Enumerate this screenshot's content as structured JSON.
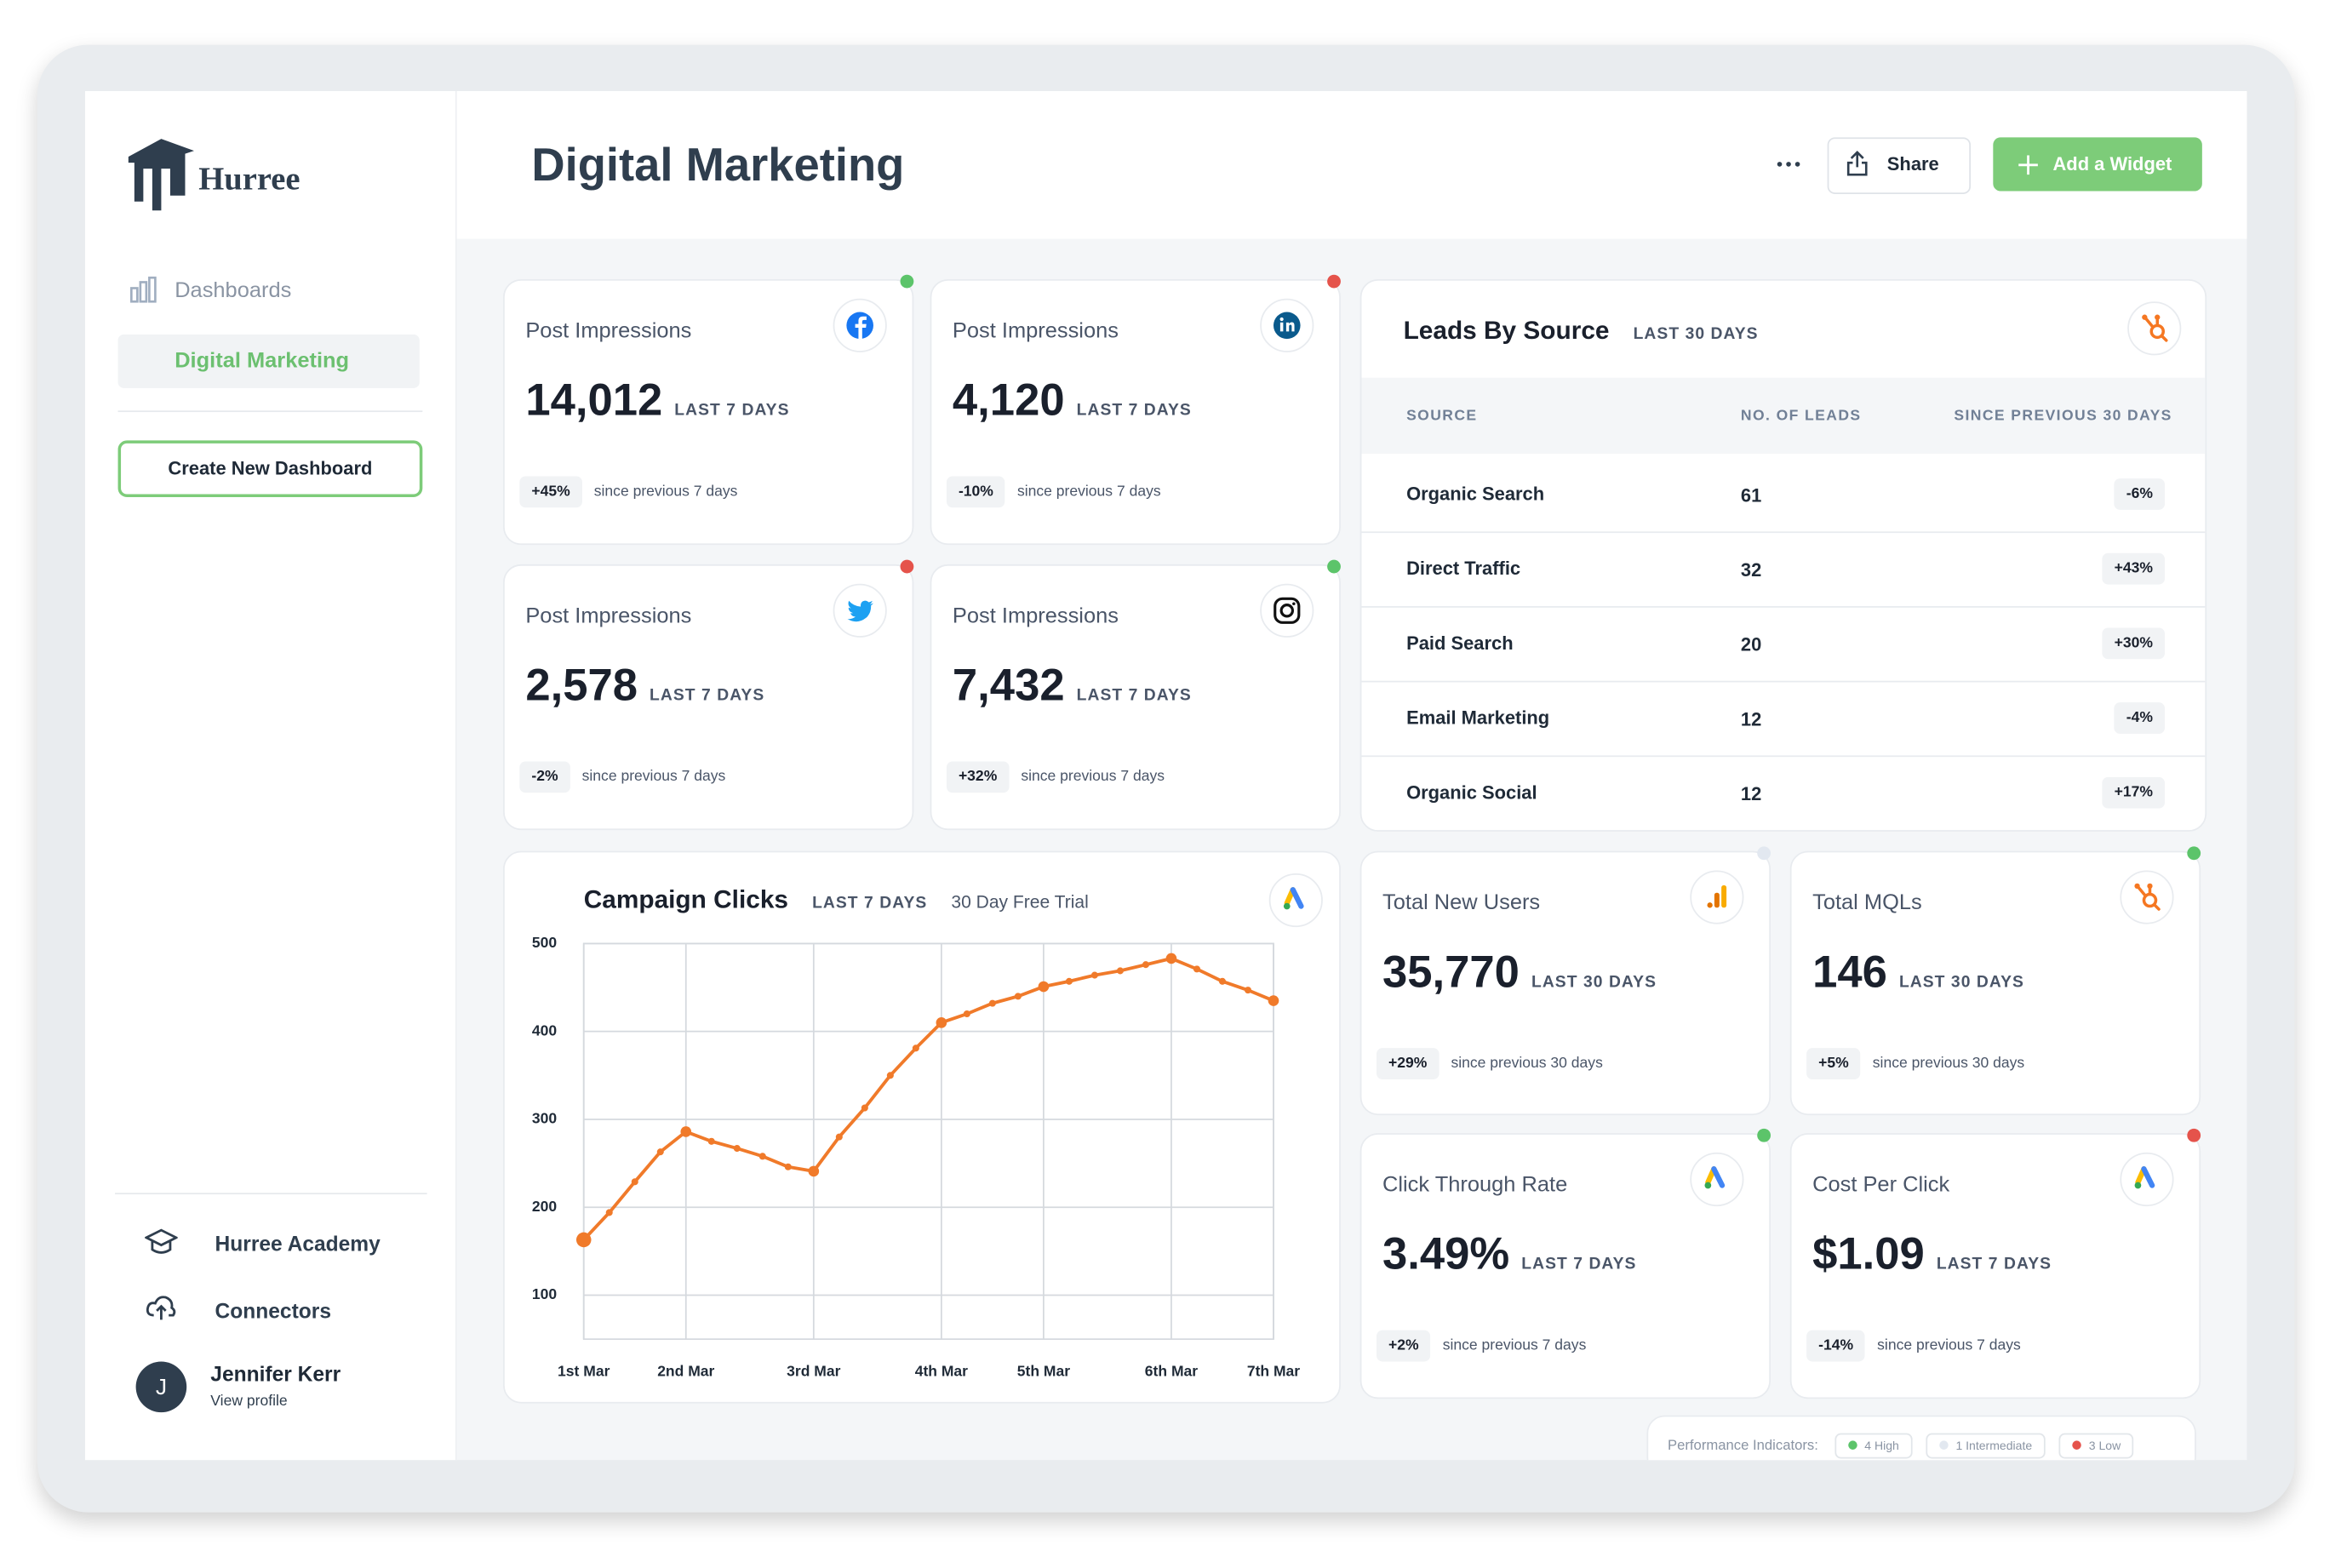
{
  "sidebar": {
    "logo": "Hurree",
    "nav": "Dashboards",
    "active": "Digital Marketing",
    "create_button": "Create New Dashboard",
    "links": [
      "Hurree Academy",
      "Connectors"
    ],
    "user": {
      "initial": "J",
      "name": "Jennifer Kerr",
      "link": "View profile"
    }
  },
  "header": {
    "title": "Digital Marketing",
    "share": "Share",
    "add": "Add a Widget"
  },
  "kpis": [
    {
      "title": "Post Impressions",
      "value": "14,012",
      "period": "LAST 7 DAYS",
      "change": "+45%",
      "note": "since previous 7 days",
      "status": "#5cc46a"
    },
    {
      "title": "Post Impressions",
      "value": "4,120",
      "period": "LAST 7 DAYS",
      "change": "-10%",
      "note": "since previous 7 days",
      "status": "#e5534b"
    },
    {
      "title": "Post Impressions",
      "value": "2,578",
      "period": "LAST 7 DAYS",
      "change": "-2%",
      "note": "since previous 7 days",
      "status": "#e5534b"
    },
    {
      "title": "Post Impressions",
      "value": "7,432",
      "period": "LAST 7 DAYS",
      "change": "+32%",
      "note": "since previous 7 days",
      "status": "#5cc46a"
    }
  ],
  "leads": {
    "title": "Leads By Source",
    "period": "LAST 30 DAYS",
    "columns": [
      "SOURCE",
      "NO. OF LEADS",
      "SINCE PREVIOUS 30 DAYS"
    ],
    "rows": [
      [
        "Organic Search",
        "61",
        "-6%"
      ],
      [
        "Direct Traffic",
        "32",
        "+43%"
      ],
      [
        "Paid Search",
        "20",
        "+30%"
      ],
      [
        "Email Marketing",
        "12",
        "-4%"
      ],
      [
        "Organic Social",
        "12",
        "+17%"
      ]
    ]
  },
  "chart_data": {
    "type": "line",
    "title": "Campaign Clicks",
    "subtitle": "LAST 7 DAYS",
    "annotation": "30 Day Free Trial",
    "categories": [
      "1st Mar",
      null,
      null,
      null,
      "2nd Mar",
      null,
      null,
      null,
      null,
      "3rd Mar",
      null,
      null,
      null,
      null,
      "4th Mar",
      null,
      null,
      null,
      "5th Mar",
      null,
      null,
      null,
      null,
      "6th Mar",
      null,
      null,
      null,
      "7th Mar"
    ],
    "values": [
      163,
      194,
      229,
      263,
      286,
      275,
      267,
      258,
      246,
      241,
      280,
      313,
      350,
      381,
      410,
      420,
      432,
      440,
      451,
      457,
      464,
      469,
      476,
      483,
      471,
      457,
      447,
      435
    ],
    "color": "#f07a2a",
    "ylim": [
      50,
      500
    ],
    "yticks": [
      100,
      200,
      300,
      400,
      500
    ],
    "grid": true
  },
  "metrics": [
    {
      "title": "Total New Users",
      "value": "35,770",
      "period": "LAST 30 DAYS",
      "change": "+29%",
      "note": "since previous 30 days",
      "status": "#e2e8f0"
    },
    {
      "title": "Total MQLs",
      "value": "146",
      "period": "LAST 30 DAYS",
      "change": "+5%",
      "note": "since previous 30 days",
      "status": "#5cc46a"
    },
    {
      "title": "Click Through Rate",
      "value": "3.49%",
      "period": "LAST 7 DAYS",
      "change": "+2%",
      "note": "since previous 7 days",
      "status": "#5cc46a"
    },
    {
      "title": "Cost Per Click",
      "value": "$1.09",
      "period": "LAST 7 DAYS",
      "change": "-14%",
      "note": "since previous 7 days",
      "status": "#e5534b"
    }
  ],
  "legend": {
    "label": "Performance Indicators:",
    "items": [
      {
        "text": "4 High",
        "color": "#5cc46a"
      },
      {
        "text": "1 Intermediate",
        "color": "#e2e8f0"
      },
      {
        "text": "3 Low",
        "color": "#e5534b"
      }
    ]
  }
}
